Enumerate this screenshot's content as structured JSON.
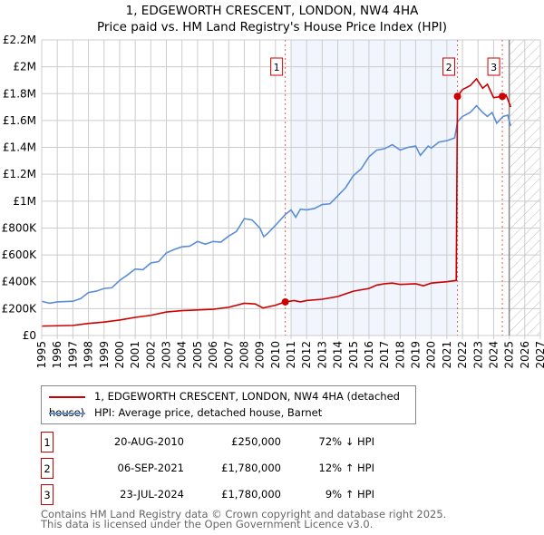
{
  "chart_data": {
    "type": "line",
    "title": "1, EDGEWORTH CRESCENT, LONDON, NW4 4HA",
    "subtitle": "Price paid vs. HM Land Registry's House Price Index (HPI)",
    "xlim": [
      1995,
      2027
    ],
    "ylim": [
      0,
      2200000
    ],
    "x_ticks": [
      "1995",
      "1996",
      "1997",
      "1998",
      "1999",
      "2000",
      "2001",
      "2002",
      "2003",
      "2004",
      "2005",
      "2006",
      "2007",
      "2008",
      "2009",
      "2010",
      "2011",
      "2012",
      "2013",
      "2014",
      "2015",
      "2016",
      "2017",
      "2018",
      "2019",
      "2020",
      "2021",
      "2022",
      "2023",
      "2024",
      "2025",
      "2026",
      "2027"
    ],
    "y_ticks": [
      {
        "v": 0,
        "label": "£0"
      },
      {
        "v": 200000,
        "label": "£200K"
      },
      {
        "v": 400000,
        "label": "£400K"
      },
      {
        "v": 600000,
        "label": "£600K"
      },
      {
        "v": 800000,
        "label": "£800K"
      },
      {
        "v": 1000000,
        "label": "£1M"
      },
      {
        "v": 1200000,
        "label": "£1.2M"
      },
      {
        "v": 1400000,
        "label": "£1.4M"
      },
      {
        "v": 1600000,
        "label": "£1.6M"
      },
      {
        "v": 1800000,
        "label": "£1.8M"
      },
      {
        "v": 2000000,
        "label": "£2M"
      },
      {
        "v": 2200000,
        "label": "£2.2M"
      }
    ],
    "grid": true,
    "shaded_range": [
      2011,
      2021.68
    ],
    "forecast_from": 2025.0,
    "series": [
      {
        "name": "1, EDGEWORTH CRESCENT, LONDON, NW4 4HA (detached house)",
        "color": "#cc0000",
        "x": [
          1995,
          1997,
          1998,
          1999,
          2000,
          2001,
          2002,
          2003,
          2004,
          2005,
          2006,
          2007,
          2008,
          2008.7,
          2009.2,
          2010,
          2010.63,
          2011.2,
          2011.6,
          2012,
          2013,
          2014,
          2015,
          2016,
          2016.5,
          2017,
          2017.5,
          2018,
          2019,
          2019.5,
          2020,
          2021,
          2021.6,
          2021.68,
          2022,
          2022.5,
          2022.9,
          2023.3,
          2023.6,
          2024,
          2024.56,
          2024.8,
          2025.1
        ],
        "y": [
          70000,
          75000,
          90000,
          100000,
          115000,
          135000,
          150000,
          175000,
          185000,
          190000,
          195000,
          210000,
          240000,
          235000,
          205000,
          225000,
          250000,
          260000,
          250000,
          260000,
          270000,
          290000,
          330000,
          350000,
          375000,
          385000,
          390000,
          380000,
          385000,
          370000,
          390000,
          400000,
          410000,
          1780000,
          1830000,
          1860000,
          1910000,
          1840000,
          1870000,
          1770000,
          1780000,
          1790000,
          1700000
        ]
      },
      {
        "name": "HPI: Average price, detached house, Barnet",
        "color": "#5b8ed6",
        "x": [
          1995,
          1995.5,
          1996,
          1997,
          1997.5,
          1998,
          1998.5,
          1999,
          1999.5,
          2000,
          2000.5,
          2001,
          2001.5,
          2002,
          2002.5,
          2003,
          2003.5,
          2004,
          2004.5,
          2005,
          2005.5,
          2006,
          2006.5,
          2007,
          2007.5,
          2008,
          2008.5,
          2009,
          2009.25,
          2009.5,
          2010,
          2010.63,
          2011,
          2011.3,
          2011.6,
          2012,
          2012.5,
          2013,
          2013.5,
          2014,
          2014.5,
          2015,
          2015.5,
          2016,
          2016.5,
          2017,
          2017.5,
          2018,
          2018.5,
          2019,
          2019.3,
          2019.8,
          2020,
          2020.5,
          2021,
          2021.5,
          2021.68,
          2022,
          2022.5,
          2022.9,
          2023.3,
          2023.6,
          2023.9,
          2024.2,
          2024.6,
          2024.9,
          2025.1
        ],
        "y": [
          255000,
          240000,
          250000,
          255000,
          275000,
          320000,
          330000,
          350000,
          355000,
          410000,
          450000,
          495000,
          490000,
          540000,
          550000,
          615000,
          640000,
          660000,
          665000,
          700000,
          680000,
          700000,
          695000,
          740000,
          775000,
          870000,
          860000,
          800000,
          735000,
          760000,
          820000,
          900000,
          935000,
          880000,
          940000,
          935000,
          945000,
          975000,
          980000,
          1040000,
          1100000,
          1190000,
          1240000,
          1330000,
          1380000,
          1390000,
          1420000,
          1380000,
          1400000,
          1410000,
          1340000,
          1410000,
          1395000,
          1440000,
          1450000,
          1470000,
          1590000,
          1630000,
          1660000,
          1710000,
          1660000,
          1630000,
          1660000,
          1580000,
          1630000,
          1640000,
          1560000
        ]
      }
    ],
    "sales": [
      {
        "n": "1",
        "x": 2010.63,
        "y": 250000,
        "date": "20-AUG-2010",
        "price": "£250,000",
        "hpi": "72% ↓ HPI"
      },
      {
        "n": "2",
        "x": 2021.68,
        "y": 1780000,
        "date": "06-SEP-2021",
        "price": "£1,780,000",
        "hpi": "12% ↑ HPI"
      },
      {
        "n": "3",
        "x": 2024.56,
        "y": 1780000,
        "date": "23-JUL-2024",
        "price": "£1,780,000",
        "hpi": "9% ↑ HPI"
      }
    ]
  },
  "footer": {
    "line1": "Contains HM Land Registry data © Crown copyright and database right 2025.",
    "line2": "This data is licensed under the Open Government Licence v3.0."
  }
}
